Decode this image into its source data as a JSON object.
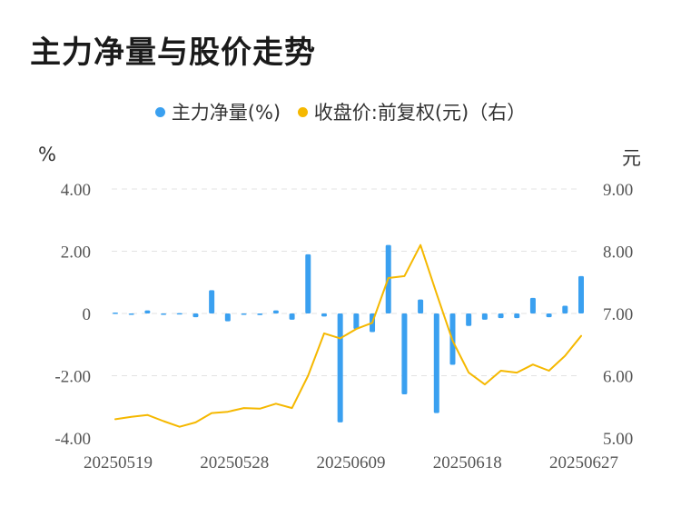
{
  "title": "主力净量与股价走势",
  "legend": {
    "series1": "主力净量(%)",
    "series2": "收盘价:前复权(元)（右）"
  },
  "units": {
    "left": "%",
    "right": "元"
  },
  "colors": {
    "bar": "#3aa0f0",
    "line": "#f5b800",
    "grid": "#e3e3e3"
  },
  "chart_data": {
    "type": "bar+line",
    "x_tick_labels": [
      "20250519",
      "20250528",
      "20250609",
      "20250618",
      "20250627"
    ],
    "y_left": {
      "ticks": [
        "4.00",
        "2.00",
        "0",
        "-2.00",
        "-4.00"
      ],
      "range": [
        -4,
        4
      ]
    },
    "y_right": {
      "ticks": [
        "9.00",
        "8.00",
        "7.00",
        "6.00",
        "5.00"
      ],
      "range": [
        5,
        9
      ]
    },
    "grid": true,
    "legend_position": "top",
    "series": [
      {
        "name": "主力净量(%)",
        "type": "bar",
        "axis": "left",
        "values": [
          0.03,
          -0.02,
          0.1,
          -0.02,
          0.01,
          -0.12,
          0.75,
          -0.25,
          -0.02,
          -0.05,
          0.1,
          -0.2,
          1.9,
          -0.1,
          -3.5,
          -0.5,
          -0.6,
          2.2,
          -2.6,
          0.45,
          -3.2,
          -1.65,
          -0.4,
          -0.2,
          -0.15,
          -0.15,
          0.5,
          -0.12,
          0.25,
          1.2
        ]
      },
      {
        "name": "收盘价:前复权(元)（右）",
        "type": "line",
        "axis": "right",
        "values": [
          5.3,
          5.34,
          5.37,
          5.27,
          5.18,
          5.25,
          5.4,
          5.42,
          5.48,
          5.47,
          5.55,
          5.48,
          6.0,
          6.68,
          6.6,
          6.75,
          6.85,
          7.57,
          7.6,
          8.1,
          7.32,
          6.56,
          6.05,
          5.86,
          6.08,
          6.05,
          6.18,
          6.08,
          6.32,
          6.64
        ]
      }
    ]
  }
}
